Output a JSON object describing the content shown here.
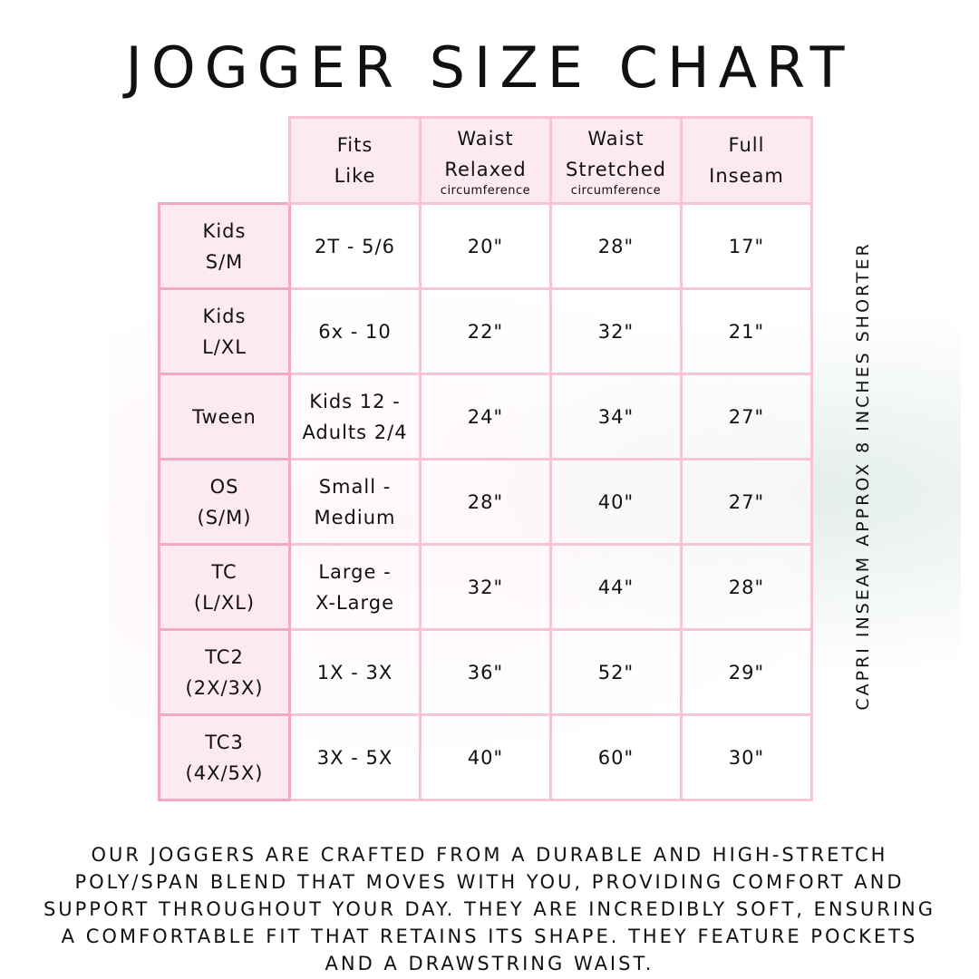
{
  "title": "JOGGER SIZE CHART",
  "columns": [
    {
      "lines": [
        "Fits",
        "Like"
      ],
      "sub": ""
    },
    {
      "lines": [
        "Waist",
        "Relaxed"
      ],
      "sub": "circumference"
    },
    {
      "lines": [
        "Waist",
        "Stretched"
      ],
      "sub": "circumference"
    },
    {
      "lines": [
        "Full",
        "Inseam"
      ],
      "sub": ""
    }
  ],
  "rows": [
    {
      "size": [
        "Kids",
        "S/M"
      ],
      "fits": [
        "2T - 5/6"
      ],
      "relaxed": "20\"",
      "stretched": "28\"",
      "inseam": "17\""
    },
    {
      "size": [
        "Kids",
        "L/XL"
      ],
      "fits": [
        "6x - 10"
      ],
      "relaxed": "22\"",
      "stretched": "32\"",
      "inseam": "21\""
    },
    {
      "size": [
        "Tween"
      ],
      "fits": [
        "Kids 12 -",
        "Adults 2/4"
      ],
      "relaxed": "24\"",
      "stretched": "34\"",
      "inseam": "27\""
    },
    {
      "size": [
        "OS",
        "(S/M)"
      ],
      "fits": [
        "Small -",
        "Medium"
      ],
      "relaxed": "28\"",
      "stretched": "40\"",
      "inseam": "27\""
    },
    {
      "size": [
        "TC",
        "(L/XL)"
      ],
      "fits": [
        "Large -",
        "X-Large"
      ],
      "relaxed": "32\"",
      "stretched": "44\"",
      "inseam": "28\""
    },
    {
      "size": [
        "TC2",
        "(2X/3X)"
      ],
      "fits": [
        "1X - 3X"
      ],
      "relaxed": "36\"",
      "stretched": "52\"",
      "inseam": "29\""
    },
    {
      "size": [
        "TC3",
        "(4X/5X)"
      ],
      "fits": [
        "3X - 5X"
      ],
      "relaxed": "40\"",
      "stretched": "60\"",
      "inseam": "30\""
    }
  ],
  "side_note": "CAPRI INSEAM APPROX 8 INCHES SHORTER",
  "description": "Our joggers are crafted from a durable and high-stretch poly/span blend that moves with you, providing comfort and support throughout your day. They are incredibly soft, ensuring a comfortable fit that retains its shape. They feature pockets and a drawstring waist.",
  "colors": {
    "border": "#f7c4d4",
    "header_fill": "#fde8ef",
    "text": "#111111"
  }
}
